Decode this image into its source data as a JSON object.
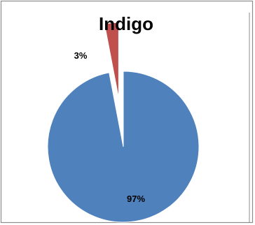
{
  "chart_data": {
    "type": "pie",
    "title": "Indigo",
    "slices": [
      {
        "value": 97,
        "label": "97%",
        "color": "#4f81bd"
      },
      {
        "value": 3,
        "label": "3%",
        "color": "#c0504d"
      }
    ],
    "exploded_slice_index": 1,
    "legend": "none",
    "grid": false
  }
}
